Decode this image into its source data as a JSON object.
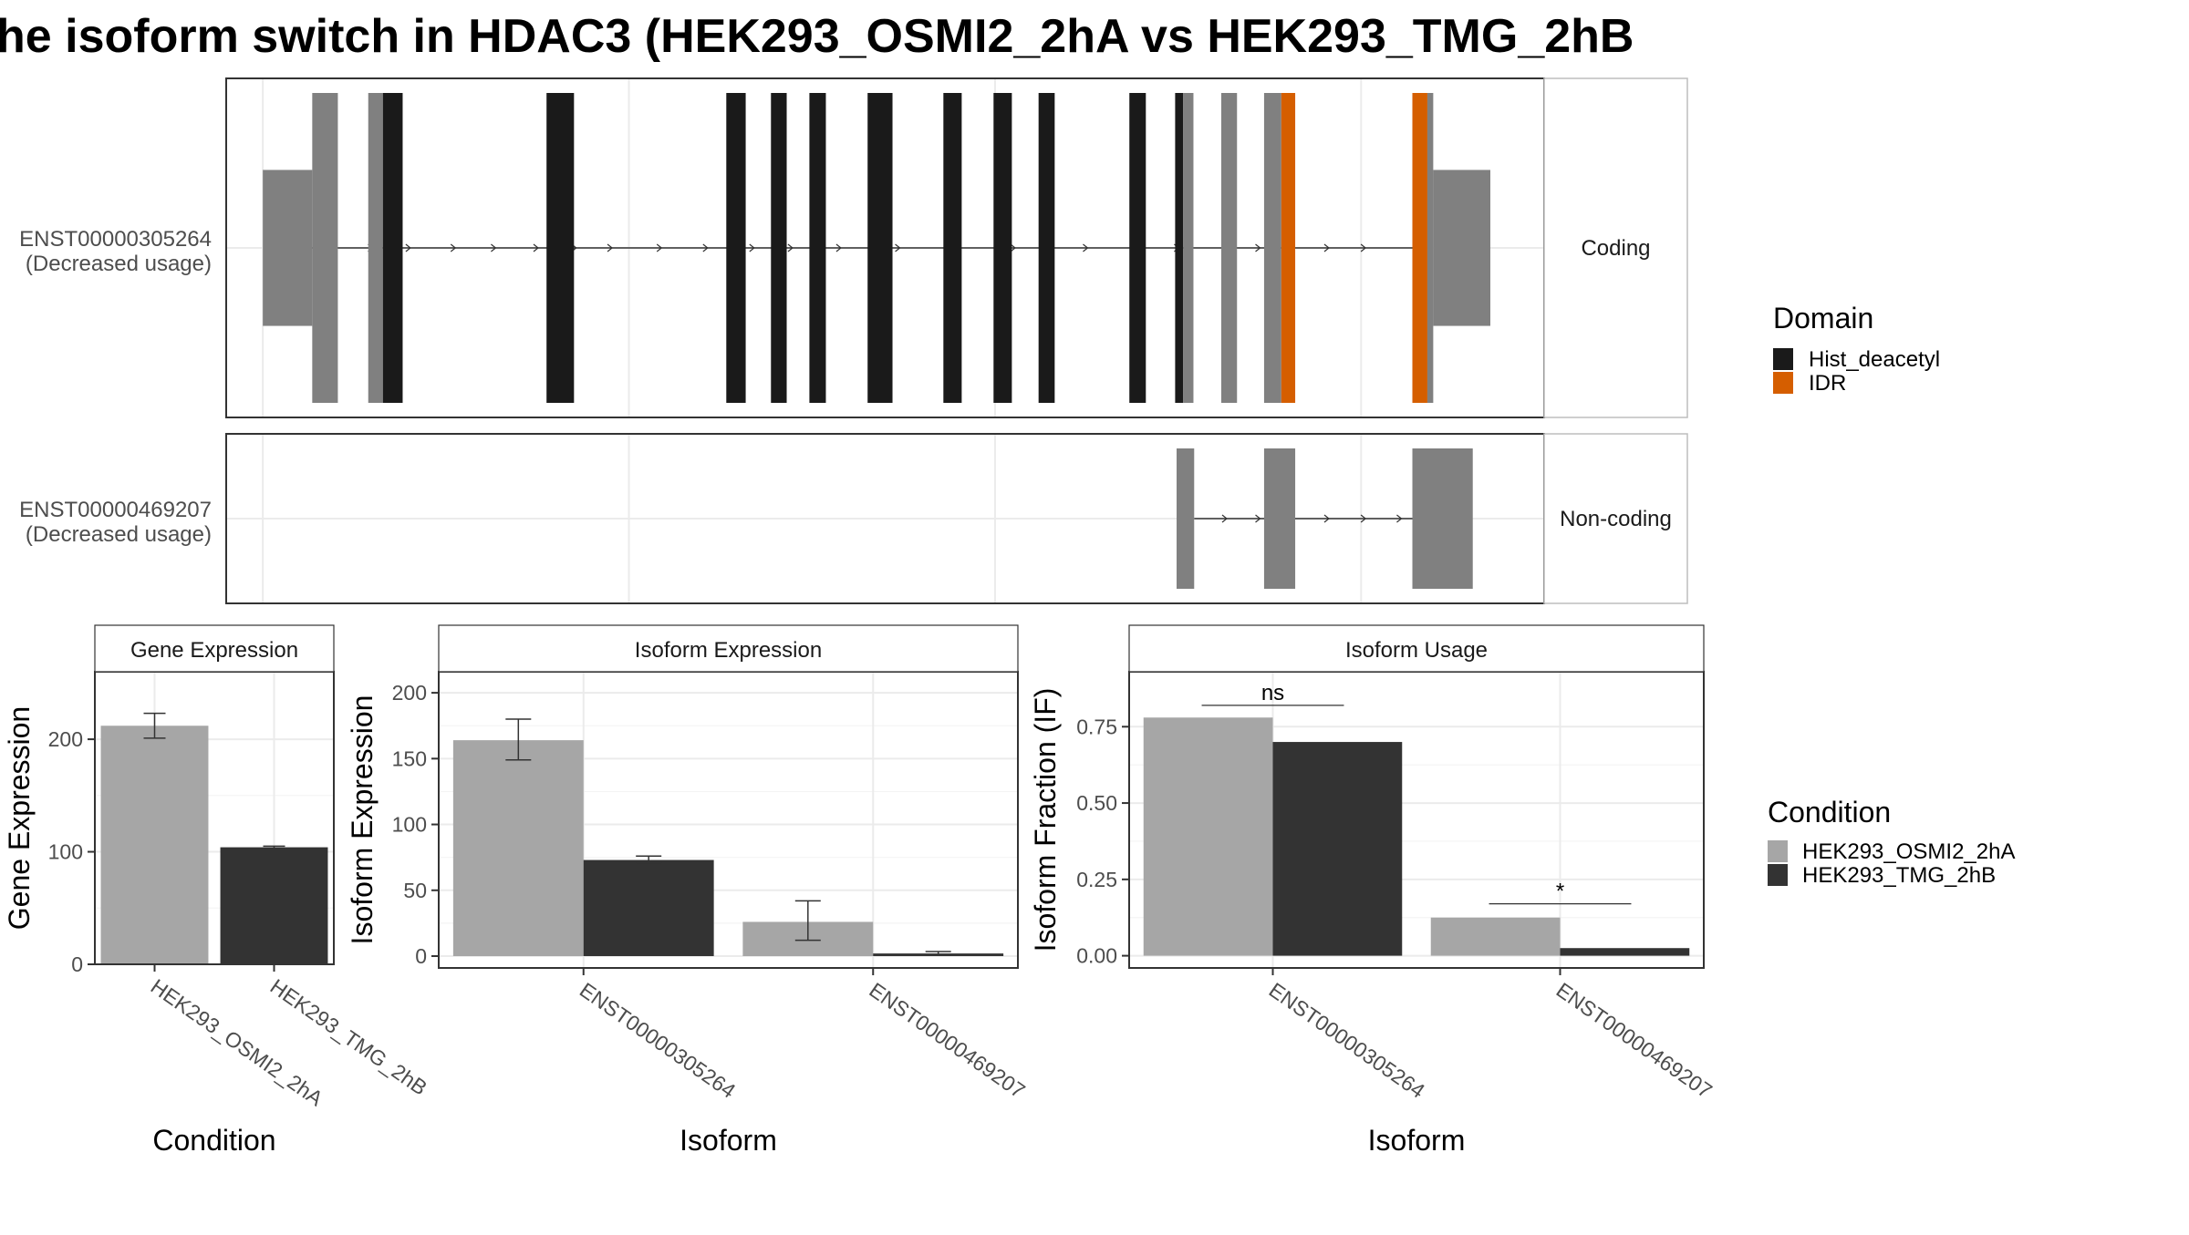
{
  "title": "he isoform switch in HDAC3 (HEK293_OSMI2_2hA vs HEK293_TMG_2hB",
  "colors": {
    "utr": "#808080",
    "hist_deacetyl": "#1a1a1a",
    "idr": "#d55e00",
    "cond_a": "#a6a6a6",
    "cond_b": "#333333",
    "grid": "#ebebeb",
    "panel_border": "#333333",
    "strip_border": "#bdbdbd"
  },
  "transcripts": [
    {
      "id": "ENST00000305264",
      "usage": "(Decreased usage)",
      "strip": "Coding",
      "features": [
        {
          "domain": "utr",
          "start": 0,
          "end": 1350,
          "full": false
        },
        {
          "domain": "utr",
          "start": 1350,
          "end": 2050,
          "full": true
        },
        {
          "domain": "utr",
          "start": 2880,
          "end": 3280,
          "full": true
        },
        {
          "domain": "hist_deacetyl",
          "start": 3280,
          "end": 3820,
          "full": true
        },
        {
          "domain": "hist_deacetyl",
          "start": 7750,
          "end": 8500,
          "full": true
        },
        {
          "domain": "hist_deacetyl",
          "start": 12660,
          "end": 13190,
          "full": true
        },
        {
          "domain": "hist_deacetyl",
          "start": 13880,
          "end": 14310,
          "full": true
        },
        {
          "domain": "hist_deacetyl",
          "start": 14930,
          "end": 15380,
          "full": true
        },
        {
          "domain": "hist_deacetyl",
          "start": 16520,
          "end": 17200,
          "full": true
        },
        {
          "domain": "hist_deacetyl",
          "start": 18590,
          "end": 19090,
          "full": true
        },
        {
          "domain": "hist_deacetyl",
          "start": 19960,
          "end": 20460,
          "full": true
        },
        {
          "domain": "hist_deacetyl",
          "start": 21190,
          "end": 21630,
          "full": true
        },
        {
          "domain": "hist_deacetyl",
          "start": 23670,
          "end": 24120,
          "full": true
        },
        {
          "domain": "hist_deacetyl",
          "start": 24920,
          "end": 25140,
          "full": true
        },
        {
          "domain": "utr",
          "start": 25140,
          "end": 25420,
          "full": true
        },
        {
          "domain": "utr",
          "start": 26180,
          "end": 26610,
          "full": true
        },
        {
          "domain": "utr",
          "start": 27350,
          "end": 27820,
          "full": true
        },
        {
          "domain": "idr",
          "start": 27820,
          "end": 28200,
          "full": true
        },
        {
          "domain": "idr",
          "start": 31400,
          "end": 31810,
          "full": true
        },
        {
          "domain": "utr",
          "start": 31810,
          "end": 31970,
          "full": true
        },
        {
          "domain": "utr",
          "start": 31970,
          "end": 33530,
          "full": false
        }
      ],
      "line": [
        420,
        31400
      ],
      "arrows": [
        3000,
        4030,
        5260,
        6360,
        7520,
        8560,
        9540,
        10890,
        12150,
        13420,
        14470,
        15790,
        17400,
        18960,
        20550,
        22530,
        23840,
        25020,
        26330,
        27240,
        29120,
        30120
      ]
    },
    {
      "id": "ENST00000469207",
      "usage": "(Decreased usage)",
      "strip": "Non-coding",
      "features": [
        {
          "domain": "utr",
          "start": 24960,
          "end": 25440,
          "full": true
        },
        {
          "domain": "utr",
          "start": 27350,
          "end": 28200,
          "full": true
        },
        {
          "domain": "utr",
          "start": 31400,
          "end": 33050,
          "full": true
        }
      ],
      "line": [
        25440,
        31400
      ],
      "arrows": [
        26330,
        27240,
        29120,
        30120,
        31100
      ]
    }
  ],
  "domain_legend": {
    "title": "Domain",
    "items": [
      {
        "label": "Hist_deacetyl",
        "color_key": "hist_deacetyl"
      },
      {
        "label": "IDR",
        "color_key": "idr"
      }
    ]
  },
  "condition_legend": {
    "title": "Condition",
    "items": [
      {
        "label": "HEK293_OSMI2_2hA",
        "color_key": "cond_a"
      },
      {
        "label": "HEK293_TMG_2hB",
        "color_key": "cond_b"
      }
    ]
  },
  "chart_data": [
    {
      "type": "bar",
      "title": "Gene Expression",
      "xlabel": "Condition",
      "ylabel": "Gene Expression",
      "categories": [
        "HEK293_OSMI2_2hA",
        "HEK293_TMG_2hB"
      ],
      "values": [
        212,
        104
      ],
      "error_low": [
        201,
        103
      ],
      "error_high": [
        223,
        105
      ],
      "ylim": [
        0,
        260
      ],
      "yticks": [
        0,
        100,
        200
      ],
      "ytick_labels": [
        "0",
        "100",
        "200"
      ],
      "grid": true
    },
    {
      "type": "bar",
      "title": "Isoform Expression",
      "xlabel": "Isoform",
      "ylabel": "Isoform Expression",
      "categories": [
        "ENST00000305264",
        "ENST00000469207"
      ],
      "series": [
        {
          "condition": "HEK293_OSMI2_2hA",
          "values": [
            164,
            26
          ],
          "error_low": [
            149,
            12
          ],
          "error_high": [
            180,
            42
          ]
        },
        {
          "condition": "HEK293_TMG_2hB",
          "values": [
            73,
            2
          ],
          "error_low": [
            71,
            1
          ],
          "error_high": [
            76,
            3.5
          ]
        }
      ],
      "ylim": [
        -9,
        216
      ],
      "yticks": [
        0,
        50,
        100,
        150,
        200
      ],
      "ytick_labels": [
        "0",
        "50",
        "100",
        "150",
        "200"
      ],
      "grid": true
    },
    {
      "type": "bar",
      "title": "Isoform Usage",
      "xlabel": "Isoform",
      "ylabel": "Isoform Fraction (IF)",
      "categories": [
        "ENST00000305264",
        "ENST00000469207"
      ],
      "series": [
        {
          "condition": "HEK293_OSMI2_2hA",
          "values": [
            0.78,
            0.125
          ]
        },
        {
          "condition": "HEK293_TMG_2hB",
          "values": [
            0.7,
            0.025
          ]
        }
      ],
      "ylim": [
        -0.04,
        0.93
      ],
      "yticks": [
        0,
        0.25,
        0.5,
        0.75
      ],
      "ytick_labels": [
        "0.00",
        "0.25",
        "0.50",
        "0.75"
      ],
      "significance": [
        {
          "label": "ns",
          "y": 0.82
        },
        {
          "label": "*",
          "y": 0.17
        }
      ],
      "grid": true
    }
  ]
}
